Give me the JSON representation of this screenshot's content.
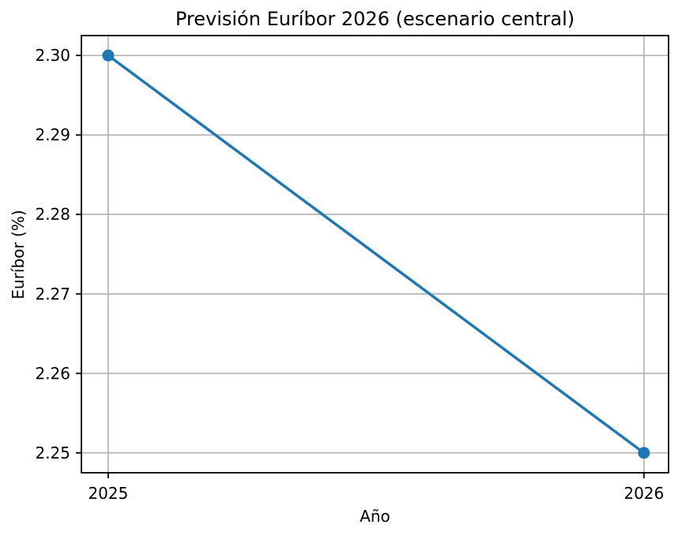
{
  "chart_data": {
    "type": "line",
    "title": "Previsión Euríbor 2026 (escenario central)",
    "xlabel": "Año",
    "ylabel": "Euríbor (%)",
    "x": [
      2025,
      2026
    ],
    "values": [
      2.3,
      2.25
    ],
    "xticks": [
      "2025",
      "2026"
    ],
    "yticks": [
      "2.25",
      "2.26",
      "2.27",
      "2.28",
      "2.29",
      "2.30"
    ],
    "xlim": [
      2024.95,
      2026.046
    ],
    "ylim": [
      2.2475,
      2.3025
    ],
    "grid": true,
    "legend": false,
    "line_color": "#1f77b4",
    "marker_color": "#1f77b4",
    "grid_color": "#b0b0b0",
    "spine_color": "#000000",
    "marker": "o"
  }
}
